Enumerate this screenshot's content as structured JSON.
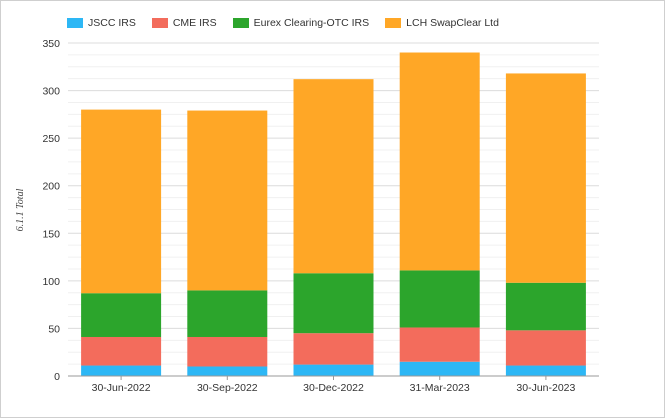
{
  "chart_data": {
    "type": "bar",
    "stacked": true,
    "categories": [
      "30-Jun-2022",
      "30-Sep-2022",
      "30-Dec-2022",
      "31-Mar-2023",
      "30-Jun-2023"
    ],
    "series": [
      {
        "name": "JSCC IRS",
        "color": "#2db7f5",
        "values": [
          11,
          10,
          12,
          15,
          11
        ]
      },
      {
        "name": "CME IRS",
        "color": "#f36c5c",
        "values": [
          30,
          31,
          33,
          36,
          37
        ]
      },
      {
        "name": "Eurex Clearing-OTC IRS",
        "color": "#2ca52c",
        "values": [
          46,
          49,
          63,
          60,
          50
        ]
      },
      {
        "name": "LCH SwapClear Ltd",
        "color": "#ffa726",
        "values": [
          193,
          189,
          204,
          229,
          220
        ]
      }
    ],
    "ylabel": "6.1.1 Total",
    "xlabel": "",
    "ylim": [
      0,
      350
    ],
    "yticks": [
      0,
      50,
      100,
      150,
      200,
      250,
      300,
      350
    ],
    "grid": true,
    "legend_position": "top-left"
  }
}
